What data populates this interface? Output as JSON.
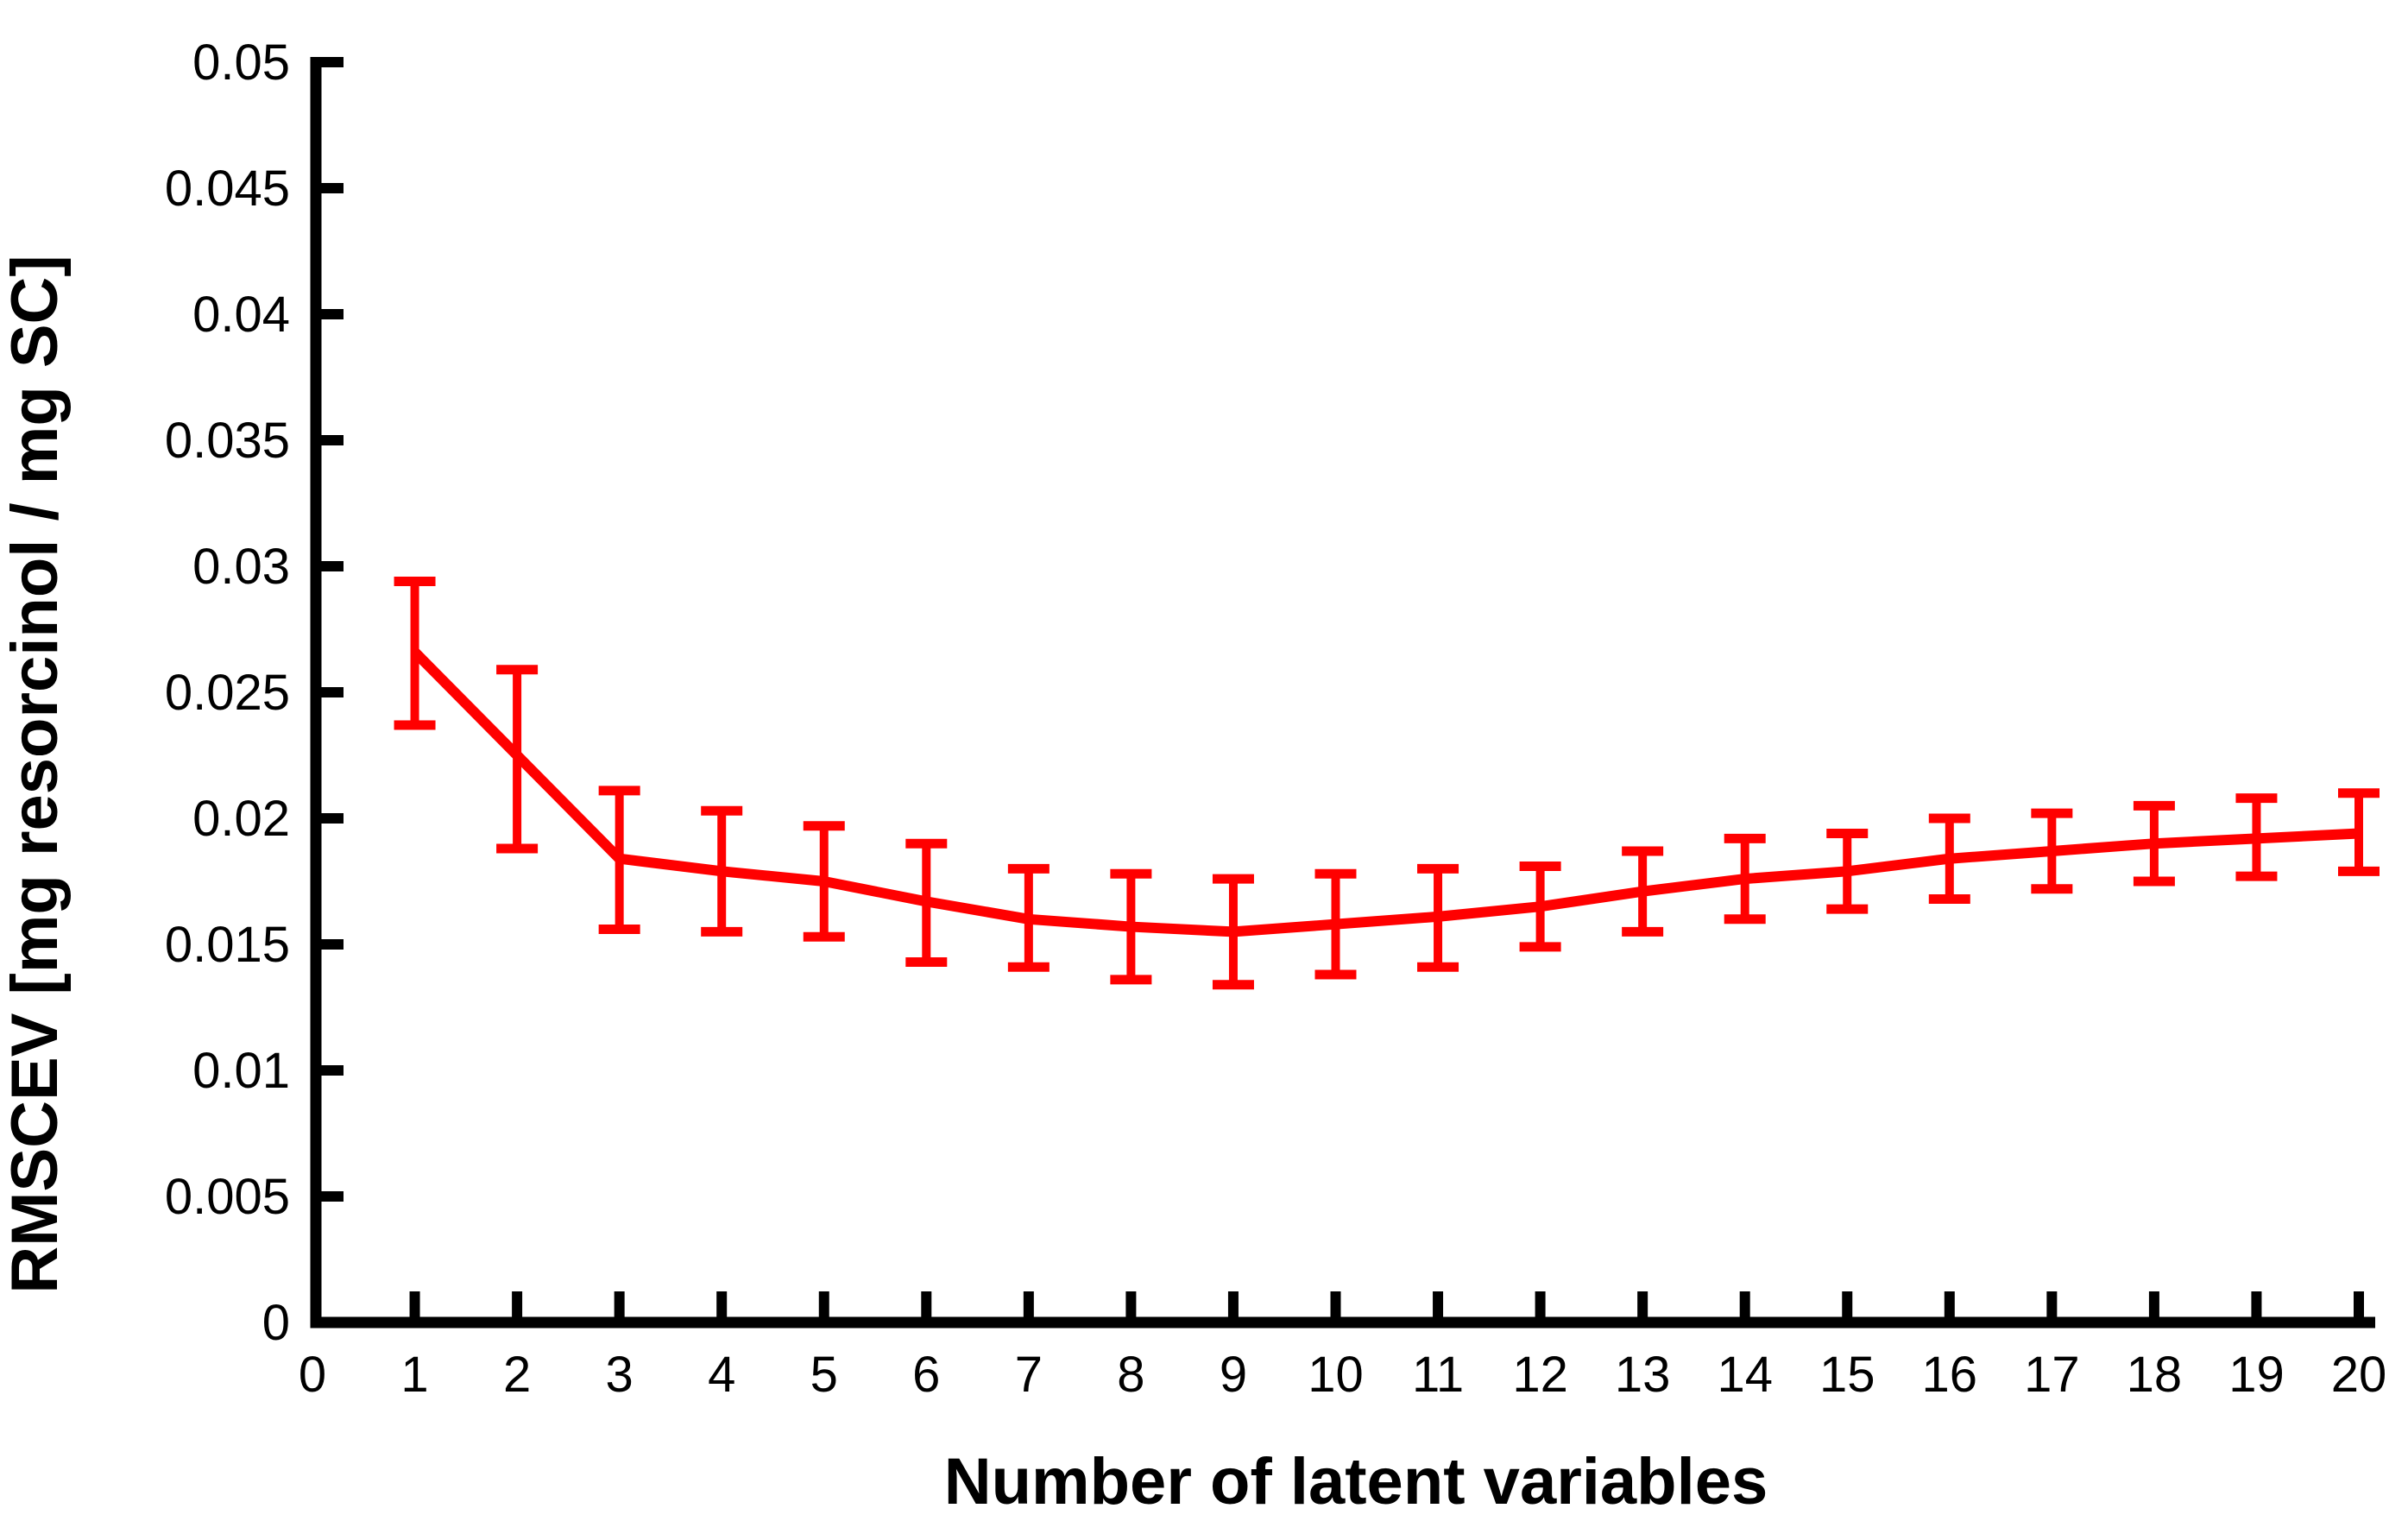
{
  "page": {
    "background": "#ffffff"
  },
  "chart_data": {
    "type": "line",
    "title": "",
    "xlabel": "Number of latent variables",
    "ylabel": "RMSCEV [mg resorcinol / mg SC]",
    "series_name": "RMSCEV vs latent variables with error bars",
    "x": [
      1,
      2,
      3,
      4,
      5,
      6,
      7,
      8,
      9,
      10,
      11,
      12,
      13,
      14,
      15,
      16,
      17,
      18,
      19,
      20
    ],
    "values": [
      0.0266,
      0.0225,
      0.0184,
      0.0179,
      0.0175,
      0.0167,
      0.016,
      0.0157,
      0.0155,
      0.0158,
      0.0161,
      0.0165,
      0.0171,
      0.0176,
      0.0179,
      0.0184,
      0.0187,
      0.019,
      0.0192,
      0.0194
    ],
    "error_low": [
      0.0237,
      0.0188,
      0.0156,
      0.0155,
      0.0153,
      0.0143,
      0.0141,
      0.0136,
      0.0134,
      0.0138,
      0.0141,
      0.0149,
      0.0155,
      0.016,
      0.0164,
      0.0168,
      0.0172,
      0.0175,
      0.0177,
      0.0179
    ],
    "error_high": [
      0.0294,
      0.0259,
      0.0211,
      0.0203,
      0.0197,
      0.019,
      0.018,
      0.0178,
      0.0176,
      0.0178,
      0.018,
      0.0181,
      0.0187,
      0.0192,
      0.0194,
      0.02,
      0.0202,
      0.0205,
      0.0208,
      0.021
    ],
    "xlim": [
      0,
      20.2
    ],
    "ylim": [
      0,
      0.05
    ],
    "x_tick_labels": [
      "0",
      "1",
      "2",
      "3",
      "4",
      "5",
      "6",
      "7",
      "8",
      "9",
      "10",
      "11",
      "12",
      "13",
      "14",
      "15",
      "16",
      "17",
      "18",
      "19",
      "20"
    ],
    "y_tick_values": [
      0,
      0.005,
      0.01,
      0.015,
      0.02,
      0.025,
      0.03,
      0.035,
      0.04,
      0.045,
      0.05
    ],
    "y_tick_labels": [
      "0",
      "0.005",
      "0.01",
      "0.015",
      "0.02",
      "0.025",
      "0.03",
      "0.035",
      "0.04",
      "0.045",
      "0.05"
    ],
    "grid": false,
    "legend": "none",
    "colors": {
      "line": "#ff0000",
      "axis": "#000000",
      "text": "#000000",
      "background": "#ffffff"
    }
  }
}
